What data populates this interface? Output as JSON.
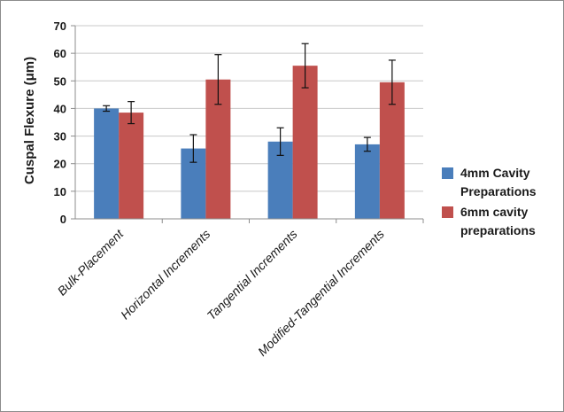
{
  "chart_data": {
    "type": "bar",
    "title": "",
    "xlabel": "",
    "ylabel": "Cuspal Flexure (μm)",
    "ylim": [
      0,
      70
    ],
    "yticks": [
      0,
      10,
      20,
      30,
      40,
      50,
      60,
      70
    ],
    "grid": true,
    "legend_position": "right",
    "categories": [
      "Bulk-Placement",
      "Horizontal Increments",
      "Tangential Increments",
      "Modified-Tangential Increments"
    ],
    "series": [
      {
        "legend_lines": [
          "4mm Cavity",
          "Preparations"
        ],
        "color": "#4a7ebb",
        "values": [
          40,
          25.5,
          28,
          27
        ],
        "error": [
          1,
          5,
          5,
          2.5
        ]
      },
      {
        "legend_lines": [
          "6mm cavity",
          "preparations"
        ],
        "color": "#c0504d",
        "values": [
          38.5,
          50.5,
          55.5,
          49.5
        ],
        "error": [
          4,
          9,
          8,
          8
        ]
      }
    ]
  }
}
